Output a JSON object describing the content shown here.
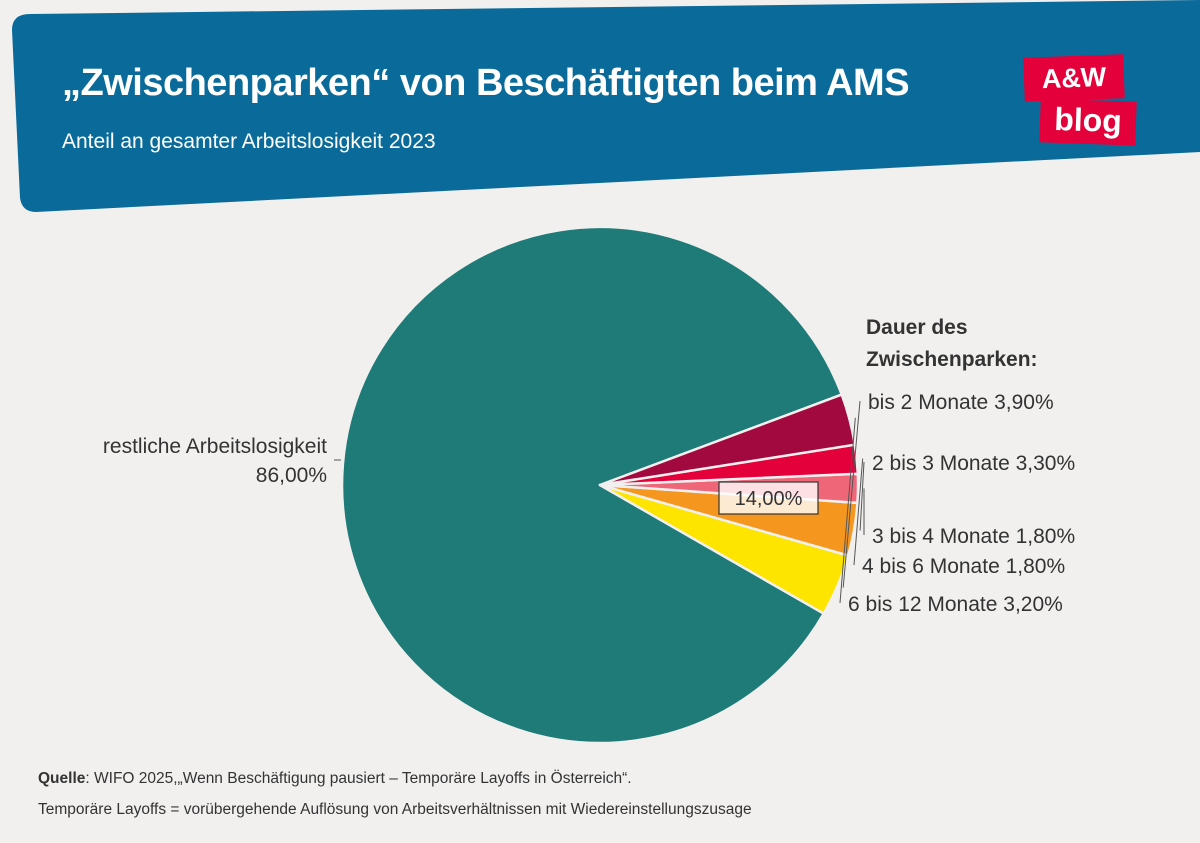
{
  "header": {
    "title": "„Zwischenparken“ von Beschäftigten beim AMS",
    "subtitle": "Anteil an gesamter Arbeitslosigkeit 2023",
    "background": "#0a6b9a"
  },
  "logo": {
    "line1": "A&W",
    "line2": "blog",
    "color": "#e4003a"
  },
  "legend": {
    "title_line1": "Dauer des",
    "title_line2": "Zwischenparken:"
  },
  "chart_data": {
    "type": "pie",
    "unit": "%",
    "slices": [
      {
        "label": "restliche Arbeitslosigkeit",
        "value": 86.0,
        "value_label": "86,00%",
        "color": "#1e7b78"
      },
      {
        "label": "bis 2 Monate",
        "value": 3.9,
        "value_label": "3,90%",
        "color": "#fde500"
      },
      {
        "label": "2 bis 3 Monate",
        "value": 3.3,
        "value_label": "3,30%",
        "color": "#f5961e"
      },
      {
        "label": "3 bis 4 Monate",
        "value": 1.8,
        "value_label": "1,80%",
        "color": "#ee6677"
      },
      {
        "label": "4 bis 6 Monate",
        "value": 1.8,
        "value_label": "1,80%",
        "color": "#e4003a"
      },
      {
        "label": "6 bis 12 Monate",
        "value": 3.2,
        "value_label": "3,20%",
        "color": "#a2093e"
      }
    ],
    "group_total_label": "14,00%"
  },
  "footer": {
    "source_label": "Quelle",
    "source_text": ": WIFO 2025,„Wenn Beschäftigung pausiert – Temporäre Layoffs in Österreich“.",
    "note": "Temporäre Layoffs = vorübergehende Auflösung von Arbeitsverhältnissen mit Wiedereinstellungszusage"
  }
}
